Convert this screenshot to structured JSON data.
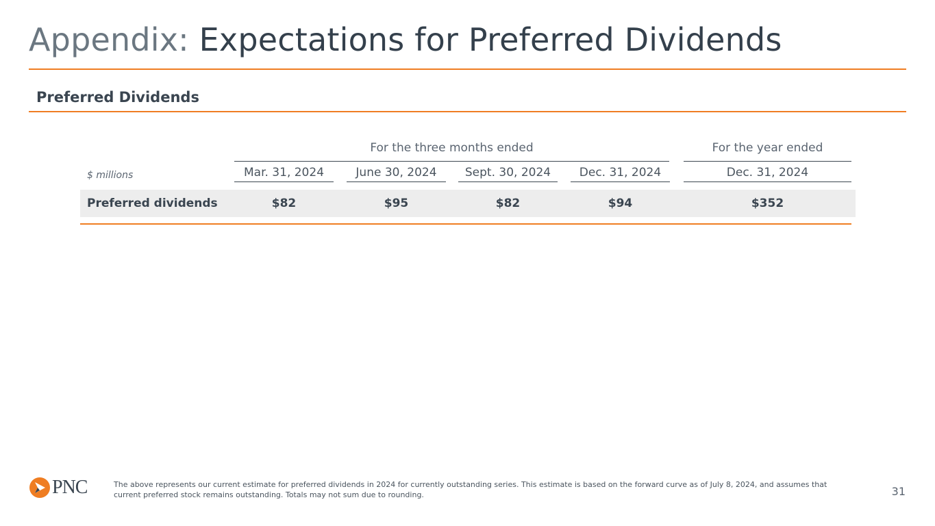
{
  "slide": {
    "title_prefix": "Appendix:",
    "title_main": "Expectations for Preferred Dividends",
    "section_title": "Preferred Dividends",
    "page_number": "31"
  },
  "table": {
    "units_label": "$ millions",
    "group_quarterly": "For the three months ended",
    "group_annual": "For the year ended",
    "columns": [
      "Mar. 31, 2024",
      "June 30, 2024",
      "Sept. 30, 2024",
      "Dec. 31, 2024",
      "Dec. 31, 2024"
    ],
    "rows": [
      {
        "label": "Preferred dividends",
        "values": [
          "$82",
          "$95",
          "$82",
          "$94",
          "$352"
        ]
      }
    ]
  },
  "footer": {
    "logo_text": "PNC",
    "footnote": "The above represents our current estimate for preferred dividends in 2024 for currently outstanding series. This estimate is based on the forward curve as of July 8, 2024, and assumes that current preferred stock remains outstanding. Totals may not sum due to rounding."
  },
  "colors": {
    "accent": "#ef7d22",
    "text": "#34404c",
    "band": "#ededed"
  },
  "icons": {
    "logo": "pnc-logo-icon"
  }
}
